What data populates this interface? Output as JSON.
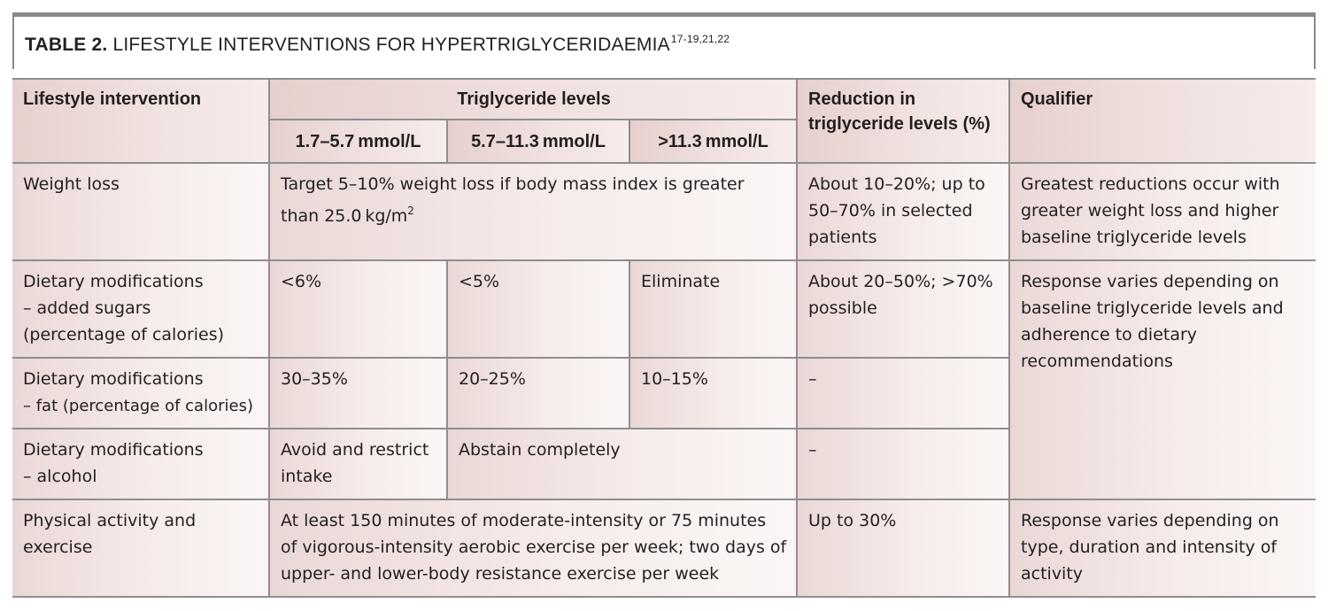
{
  "title": {
    "label": "TABLE 2.",
    "text": "LIFESTYLE INTERVENTIONS FOR HYPERTRIGLYCERIDAEMIA",
    "refs": "17-19,21,22"
  },
  "headers": {
    "intervention": "Lifestyle intervention",
    "levels": "Triglyceride levels",
    "level_1": "1.7–5.7 mmol/L",
    "level_2": "5.7–11.3 mmol/L",
    "level_3": ">11.3 mmol/L",
    "reduction_line1": "Reduction in",
    "reduction_line2": "triglyceride levels (%)",
    "qualifier": "Qualifier"
  },
  "rows": {
    "weight": {
      "name": "Weight loss",
      "target_text": "Target 5–10% weight loss if body mass index is greater than 25.0 kg/m",
      "target_sup": "2",
      "reduction": "About 10–20%; up to 50–70% in selected patients",
      "qualifier": "Greatest reductions occur with greater weight loss and higher baseline triglyceride levels"
    },
    "sugar": {
      "name_line1": "Dietary modifications",
      "name_line2": "– added sugars",
      "name_line3": "(percentage of calories)",
      "level_1": "<6%",
      "level_2": "<5%",
      "level_3": "Eliminate",
      "reduction": "About 20–50%; >70% possible"
    },
    "dietary_qualifier": "Response varies depending on baseline triglyceride levels and adherence to dietary recommendations",
    "fat": {
      "name_line1": "Dietary modifications",
      "name_line2": "– fat (percentage of calories)",
      "level_1": "30–35%",
      "level_2": "20–25%",
      "level_3": "10–15%",
      "reduction": "–"
    },
    "alcohol": {
      "name_line1": "Dietary modifications",
      "name_line2": "– alcohol",
      "level_1": "Avoid and restrict intake",
      "level_2_3": "Abstain completely",
      "reduction": "–"
    },
    "exercise": {
      "name": "Physical activity and exercise",
      "target": "At least 150 minutes of moderate-intensity or 75 minutes of vigorous-intensity aerobic exercise per week; two days of upper- and lower-body resistance exercise per week",
      "reduction": "Up to 30%",
      "qualifier": "Response varies depending on type, duration and intensity of activity"
    }
  }
}
